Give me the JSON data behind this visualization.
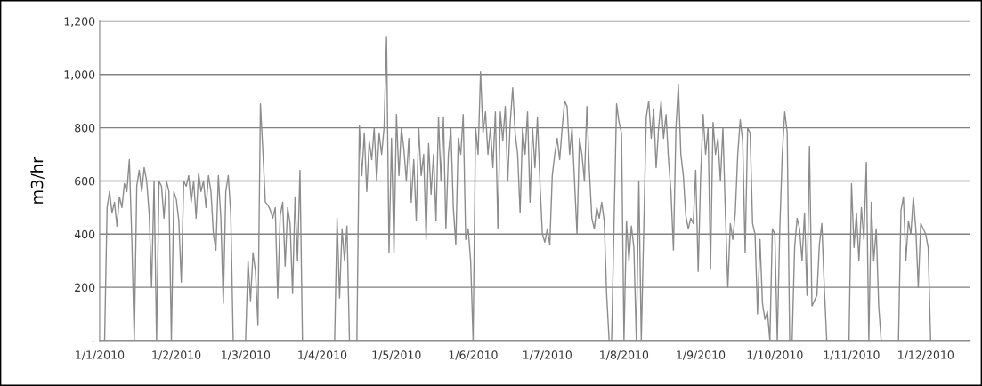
{
  "chart_data": {
    "type": "line",
    "ylabel": "m3/hr",
    "xlim": [
      "2010-01-01",
      "2010-12-19"
    ],
    "xticks": [
      {
        "value": "2010-01-01",
        "label": "1/1/2010"
      },
      {
        "value": "2010-02-01",
        "label": "1/2/2010"
      },
      {
        "value": "2010-03-01",
        "label": "1/3/2010"
      },
      {
        "value": "2010-04-01",
        "label": "1/4/2010"
      },
      {
        "value": "2010-05-01",
        "label": "1/5/2010"
      },
      {
        "value": "2010-06-01",
        "label": "1/6/2010"
      },
      {
        "value": "2010-07-01",
        "label": "1/7/2010"
      },
      {
        "value": "2010-08-01",
        "label": "1/8/2010"
      },
      {
        "value": "2010-09-01",
        "label": "1/9/2010"
      },
      {
        "value": "2010-10-01",
        "label": "1/10/2010"
      },
      {
        "value": "2010-11-01",
        "label": "1/11/2010"
      },
      {
        "value": "2010-12-01",
        "label": "1/12/2010"
      }
    ],
    "ylim": [
      0,
      1200
    ],
    "yticks": [
      {
        "value": 0,
        "label": "-"
      },
      200,
      400,
      600,
      800,
      {
        "value": 1000,
        "label": "1,000"
      },
      {
        "value": 1200,
        "label": "1,200"
      }
    ],
    "grid": "y",
    "marker": "none",
    "line_style": "solid",
    "series": [
      {
        "color": "#8c8c8c",
        "x": [
          "2010-01-03",
          "2010-01-04",
          "2010-01-05",
          "2010-01-06",
          "2010-01-07",
          "2010-01-08",
          "2010-01-09",
          "2010-01-10",
          "2010-01-11",
          "2010-01-12",
          "2010-01-13",
          "2010-01-14",
          "2010-01-15",
          "2010-01-16",
          "2010-01-17",
          "2010-01-18",
          "2010-01-19",
          "2010-01-20",
          "2010-01-21",
          "2010-01-22",
          "2010-01-23",
          "2010-01-24",
          "2010-01-25",
          "2010-01-26",
          "2010-01-27",
          "2010-01-28",
          "2010-01-29",
          "2010-01-30",
          "2010-01-31",
          "2010-02-01",
          "2010-02-02",
          "2010-02-03",
          "2010-02-04",
          "2010-02-05",
          "2010-02-06",
          "2010-02-07",
          "2010-02-08",
          "2010-02-09",
          "2010-02-10",
          "2010-02-11",
          "2010-02-12",
          "2010-02-13",
          "2010-02-14",
          "2010-02-15",
          "2010-02-16",
          "2010-02-17",
          "2010-02-18",
          "2010-02-19",
          "2010-02-20",
          "2010-02-21",
          "2010-02-22",
          "2010-02-23",
          "2010-02-24",
          "2010-02-26",
          "2010-03-01",
          "2010-03-02",
          "2010-03-03",
          "2010-03-04",
          "2010-03-05",
          "2010-03-06",
          "2010-03-07",
          "2010-03-08",
          "2010-03-09",
          "2010-03-10",
          "2010-03-11",
          "2010-03-12",
          "2010-03-13",
          "2010-03-14",
          "2010-03-15",
          "2010-03-16",
          "2010-03-17",
          "2010-03-18",
          "2010-03-19",
          "2010-03-20",
          "2010-03-21",
          "2010-03-22",
          "2010-03-23",
          "2010-03-24",
          "2010-03-30",
          "2010-04-06",
          "2010-04-07",
          "2010-04-08",
          "2010-04-09",
          "2010-04-10",
          "2010-04-11",
          "2010-04-12",
          "2010-04-13",
          "2010-04-15",
          "2010-04-16",
          "2010-04-17",
          "2010-04-18",
          "2010-04-19",
          "2010-04-20",
          "2010-04-21",
          "2010-04-22",
          "2010-04-23",
          "2010-04-24",
          "2010-04-25",
          "2010-04-26",
          "2010-04-27",
          "2010-04-28",
          "2010-04-29",
          "2010-04-30",
          "2010-05-01",
          "2010-05-02",
          "2010-05-03",
          "2010-05-04",
          "2010-05-05",
          "2010-05-06",
          "2010-05-07",
          "2010-05-08",
          "2010-05-09",
          "2010-05-10",
          "2010-05-11",
          "2010-05-12",
          "2010-05-13",
          "2010-05-14",
          "2010-05-15",
          "2010-05-16",
          "2010-05-17",
          "2010-05-18",
          "2010-05-19",
          "2010-05-20",
          "2010-05-21",
          "2010-05-22",
          "2010-05-23",
          "2010-05-24",
          "2010-05-25",
          "2010-05-26",
          "2010-05-27",
          "2010-05-28",
          "2010-05-29",
          "2010-05-30",
          "2010-05-31",
          "2010-06-01",
          "2010-06-02",
          "2010-06-03",
          "2010-06-04",
          "2010-06-05",
          "2010-06-06",
          "2010-06-07",
          "2010-06-08",
          "2010-06-09",
          "2010-06-10",
          "2010-06-11",
          "2010-06-12",
          "2010-06-13",
          "2010-06-14",
          "2010-06-15",
          "2010-06-16",
          "2010-06-17",
          "2010-06-18",
          "2010-06-19",
          "2010-06-20",
          "2010-06-21",
          "2010-06-22",
          "2010-06-23",
          "2010-06-24",
          "2010-06-25",
          "2010-06-26",
          "2010-06-27",
          "2010-06-28",
          "2010-06-29",
          "2010-06-30",
          "2010-07-01",
          "2010-07-02",
          "2010-07-03",
          "2010-07-04",
          "2010-07-05",
          "2010-07-06",
          "2010-07-07",
          "2010-07-08",
          "2010-07-09",
          "2010-07-10",
          "2010-07-11",
          "2010-07-12",
          "2010-07-13",
          "2010-07-14",
          "2010-07-15",
          "2010-07-16",
          "2010-07-17",
          "2010-07-18",
          "2010-07-19",
          "2010-07-20",
          "2010-07-21",
          "2010-07-22",
          "2010-07-23",
          "2010-07-24",
          "2010-07-25",
          "2010-07-26",
          "2010-07-27",
          "2010-07-28",
          "2010-07-29",
          "2010-07-30",
          "2010-07-31",
          "2010-08-01",
          "2010-08-02",
          "2010-08-03",
          "2010-08-04",
          "2010-08-05",
          "2010-08-06",
          "2010-08-07",
          "2010-08-08",
          "2010-08-09",
          "2010-08-10",
          "2010-08-11",
          "2010-08-12",
          "2010-08-13",
          "2010-08-14",
          "2010-08-15",
          "2010-08-16",
          "2010-08-17",
          "2010-08-18",
          "2010-08-19",
          "2010-08-20",
          "2010-08-21",
          "2010-08-22",
          "2010-08-23",
          "2010-08-24",
          "2010-08-25",
          "2010-08-26",
          "2010-08-27",
          "2010-08-28",
          "2010-08-29",
          "2010-08-30",
          "2010-08-31",
          "2010-09-01",
          "2010-09-02",
          "2010-09-03",
          "2010-09-04",
          "2010-09-05",
          "2010-09-06",
          "2010-09-07",
          "2010-09-08",
          "2010-09-09",
          "2010-09-10",
          "2010-09-11",
          "2010-09-12",
          "2010-09-13",
          "2010-09-14",
          "2010-09-15",
          "2010-09-16",
          "2010-09-17",
          "2010-09-18",
          "2010-09-19",
          "2010-09-20",
          "2010-09-21",
          "2010-09-22",
          "2010-09-23",
          "2010-09-24",
          "2010-09-25",
          "2010-09-26",
          "2010-09-27",
          "2010-09-28",
          "2010-09-29",
          "2010-09-30",
          "2010-10-01",
          "2010-10-02",
          "2010-10-03",
          "2010-10-04",
          "2010-10-05",
          "2010-10-06",
          "2010-10-07",
          "2010-10-08",
          "2010-10-09",
          "2010-10-10",
          "2010-10-11",
          "2010-10-12",
          "2010-10-13",
          "2010-10-14",
          "2010-10-15",
          "2010-10-16",
          "2010-10-17",
          "2010-10-18",
          "2010-10-19",
          "2010-10-20",
          "2010-10-21",
          "2010-10-22",
          "2010-10-26",
          "2010-10-31",
          "2010-11-01",
          "2010-11-02",
          "2010-11-03",
          "2010-11-04",
          "2010-11-05",
          "2010-11-06",
          "2010-11-07",
          "2010-11-08",
          "2010-11-09",
          "2010-11-10",
          "2010-11-11",
          "2010-11-12",
          "2010-11-13",
          "2010-11-16",
          "2010-11-20",
          "2010-11-21",
          "2010-11-22",
          "2010-11-23",
          "2010-11-24",
          "2010-11-25",
          "2010-11-26",
          "2010-11-27",
          "2010-11-28",
          "2010-11-29",
          "2010-11-30",
          "2010-12-01",
          "2010-12-02",
          "2010-12-03"
        ],
        "values": [
          0,
          500,
          560,
          480,
          520,
          430,
          540,
          500,
          590,
          560,
          680,
          380,
          0,
          580,
          640,
          560,
          650,
          600,
          480,
          200,
          600,
          0,
          600,
          580,
          460,
          600,
          560,
          0,
          560,
          530,
          450,
          220,
          600,
          580,
          620,
          520,
          600,
          460,
          630,
          560,
          600,
          500,
          620,
          560,
          400,
          340,
          620,
          460,
          140,
          560,
          620,
          480,
          0,
          null,
          0,
          300,
          150,
          330,
          260,
          60,
          890,
          710,
          520,
          510,
          490,
          460,
          500,
          160,
          470,
          520,
          280,
          500,
          440,
          180,
          540,
          300,
          640,
          0,
          null,
          0,
          460,
          160,
          420,
          300,
          430,
          0,
          null,
          0,
          810,
          620,
          780,
          560,
          750,
          680,
          800,
          600,
          780,
          700,
          800,
          1140,
          330,
          760,
          330,
          850,
          620,
          800,
          720,
          600,
          760,
          520,
          680,
          450,
          800,
          620,
          700,
          380,
          740,
          550,
          700,
          450,
          840,
          600,
          840,
          420,
          700,
          800,
          500,
          360,
          760,
          700,
          850,
          380,
          420,
          300,
          0,
          800,
          700,
          1010,
          780,
          860,
          700,
          800,
          650,
          860,
          420,
          860,
          750,
          880,
          600,
          820,
          950,
          780,
          700,
          480,
          800,
          700,
          860,
          520,
          800,
          650,
          840,
          600,
          400,
          370,
          420,
          360,
          620,
          700,
          760,
          680,
          800,
          900,
          880,
          700,
          800,
          600,
          400,
          760,
          700,
          600,
          880,
          640,
          460,
          420,
          500,
          460,
          520,
          450,
          170,
          0,
          0,
          450,
          890,
          820,
          780,
          0,
          450,
          300,
          430,
          350,
          0,
          600,
          0,
          420,
          840,
          900,
          760,
          870,
          650,
          800,
          900,
          760,
          850,
          680,
          560,
          340,
          800,
          960,
          700,
          620,
          470,
          420,
          460,
          440,
          640,
          260,
          620,
          850,
          700,
          800,
          270,
          820,
          700,
          760,
          600,
          800,
          480,
          200,
          440,
          380,
          480,
          700,
          830,
          750,
          330,
          800,
          780,
          440,
          400,
          100,
          380,
          140,
          80,
          110,
          0,
          420,
          400,
          0,
          420,
          700,
          860,
          780,
          0,
          0,
          350,
          460,
          420,
          300,
          480,
          170,
          730,
          130,
          150,
          170,
          360,
          440,
          200,
          0,
          null,
          0,
          590,
          350,
          480,
          300,
          500,
          380,
          670,
          0,
          520,
          300,
          420,
          130,
          0,
          null,
          0,
          490,
          540,
          300,
          450,
          400,
          540,
          420,
          200,
          440,
          420,
          400,
          350,
          0
        ]
      }
    ]
  }
}
